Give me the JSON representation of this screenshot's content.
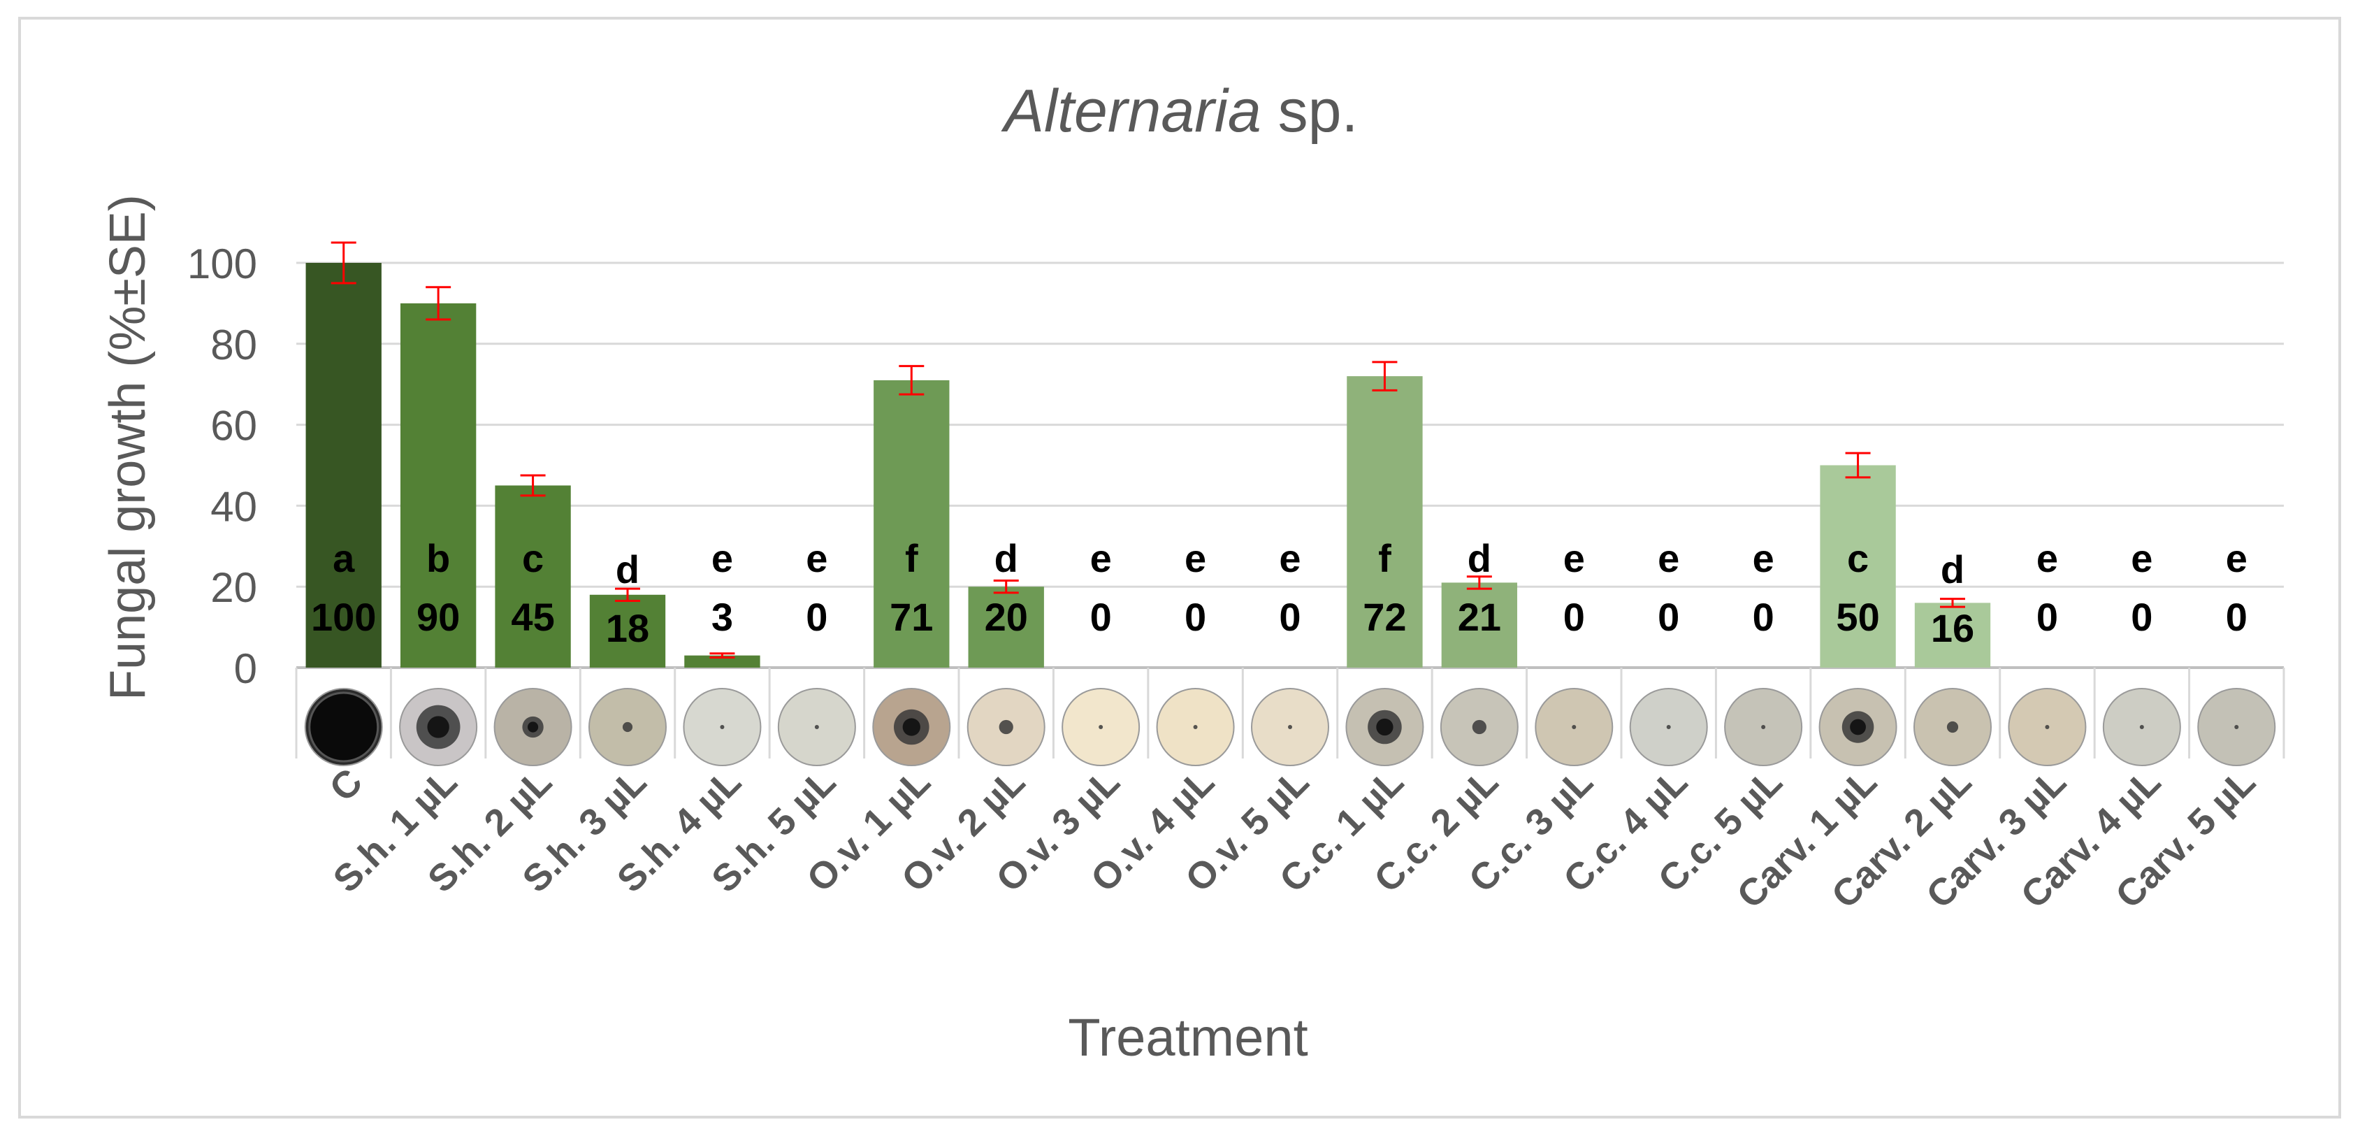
{
  "chart_data": {
    "type": "bar",
    "title_italic": "Alternaria",
    "title_rest": " sp.",
    "xlabel": "Treatment",
    "ylabel": "Fungal growth (%±SE)",
    "ylim": [
      0,
      100
    ],
    "yticks": [
      0,
      20,
      40,
      60,
      80,
      100
    ],
    "grid": true,
    "categories": [
      "C",
      "S.h. 1 µL",
      "S.h. 2 µL",
      "S.h. 3 µL",
      "S.h. 4 µL",
      "S.h. 5 µL",
      "O.v. 1 µL",
      "O.v. 2 µL",
      "O.v. 3 µL",
      "O.v. 4 µL",
      "O.v. 5 µL",
      "C.c. 1 µL",
      "C.c. 2 µL",
      "C.c. 3 µL",
      "C.c. 4 µL",
      "C.c. 5 µL",
      "Carv. 1 µL",
      "Carv. 2 µL",
      "Carv. 3 µL",
      "Carv. 4 µL",
      "Carv. 5 µL"
    ],
    "values": [
      100,
      90,
      45,
      18,
      3,
      0,
      71,
      20,
      0,
      0,
      0,
      72,
      21,
      0,
      0,
      0,
      50,
      16,
      0,
      0,
      0
    ],
    "value_labels": [
      "100",
      "90",
      "45",
      "18",
      "3",
      "0",
      "71",
      "20",
      "0",
      "0",
      "0",
      "72",
      "21",
      "0",
      "0",
      "0",
      "50",
      "16",
      "0",
      "0",
      "0"
    ],
    "errors": [
      5,
      4,
      2.5,
      1.5,
      0.5,
      0,
      3.5,
      1.5,
      0,
      0,
      0,
      3.5,
      1.5,
      0,
      0,
      0,
      3,
      1,
      0,
      0,
      0
    ],
    "letters": [
      "a",
      "b",
      "c",
      "d",
      "e",
      "e",
      "f",
      "d",
      "e",
      "e",
      "e",
      "f",
      "d",
      "e",
      "e",
      "e",
      "c",
      "d",
      "e",
      "e",
      "e"
    ],
    "bar_colors": [
      "#375623",
      "#538135",
      "#538135",
      "#538135",
      "#538135",
      "#538135",
      "#6e9a55",
      "#6e9a55",
      "#6e9a55",
      "#6e9a55",
      "#6e9a55",
      "#8fb27a",
      "#8fb27a",
      "#8fb27a",
      "#8fb27a",
      "#8fb27a",
      "#a9c99a",
      "#a9c99a",
      "#a9c99a",
      "#a9c99a",
      "#a9c99a"
    ],
    "error_color": "#ff0000",
    "dish_colony_fraction": [
      1.0,
      0.62,
      0.3,
      0.14,
      0.05,
      0.04,
      0.5,
      0.2,
      0.04,
      0.04,
      0.04,
      0.48,
      0.2,
      0.04,
      0.04,
      0.04,
      0.45,
      0.16,
      0.04,
      0.04,
      0.04
    ],
    "dish_background": [
      "#2b2b2b",
      "#c9c5c6",
      "#b9b3a6",
      "#c2bda9",
      "#d7d8d0",
      "#d6d6cc",
      "#b8a48f",
      "#e2d6c2",
      "#f2e6cc",
      "#efe2c6",
      "#e8ddc8",
      "#c5c0b2",
      "#c7c4b8",
      "#cfc6b2",
      "#cfd0c9",
      "#c5c3b8",
      "#c7c1b1",
      "#c9c2b0",
      "#d4c9b3",
      "#cdcdc4",
      "#c3c1b6"
    ]
  }
}
